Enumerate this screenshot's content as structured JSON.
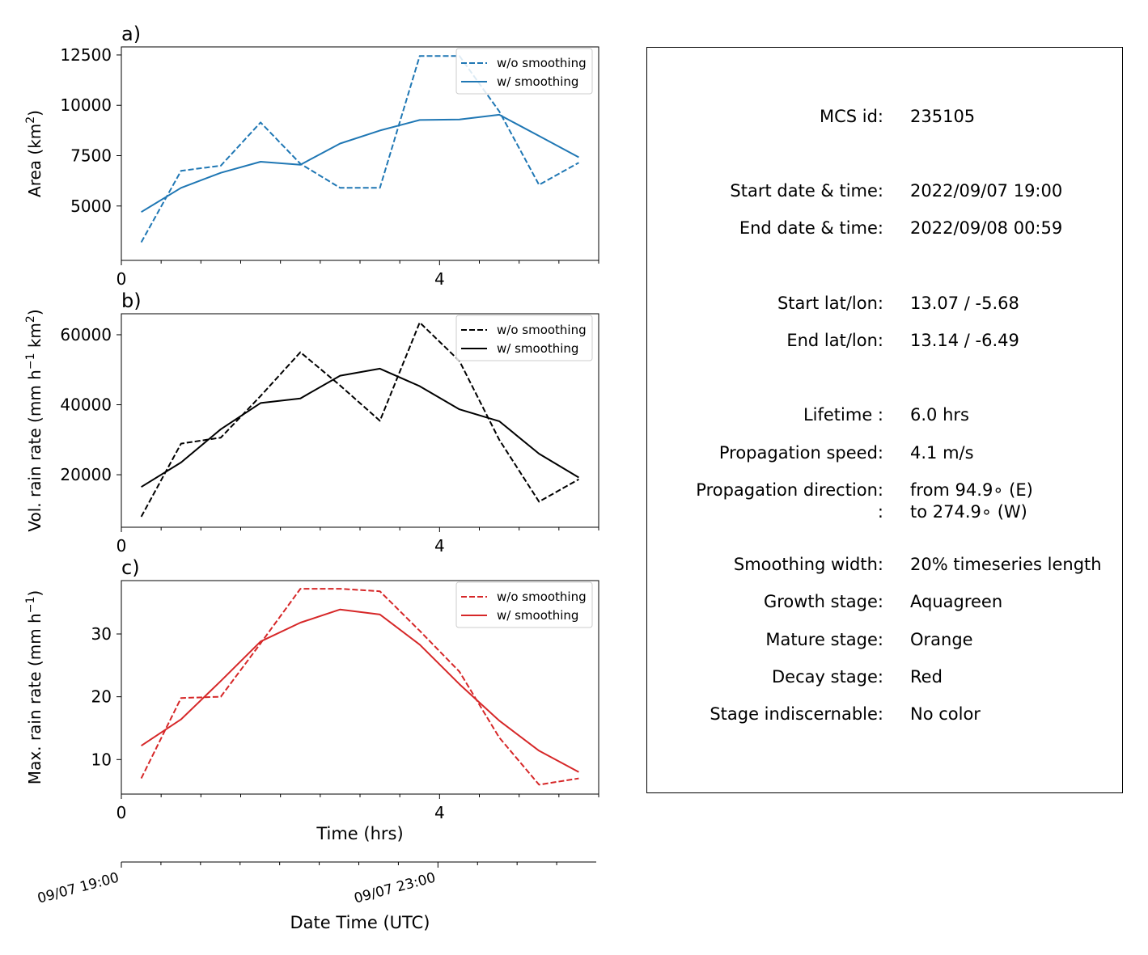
{
  "chart_data": [
    {
      "type": "line",
      "panel_label": "a)",
      "ylabel": "Area  (km",
      "ylabel_sup": "2",
      "ylabel_end": ")",
      "xlim": [
        0,
        6
      ],
      "ylim": [
        2300,
        12900
      ],
      "yticks": [
        5000,
        7500,
        10000,
        12500
      ],
      "xticks": [
        0,
        4
      ],
      "color": "#1f77b4",
      "x": [
        0.25,
        0.75,
        1.25,
        1.75,
        2.25,
        2.75,
        3.25,
        3.75,
        4.25,
        4.75,
        5.25,
        5.75
      ],
      "series": [
        {
          "name": "w/o smoothing",
          "style": "dashed",
          "values": [
            3200,
            6750,
            7000,
            9150,
            7100,
            5900,
            5900,
            12450,
            12450,
            9700,
            6050,
            7150
          ]
        },
        {
          "name": "w/ smoothing",
          "style": "solid",
          "values": [
            4700,
            5900,
            6650,
            7200,
            7050,
            8100,
            8750,
            9270,
            9300,
            9530,
            8480,
            7420
          ]
        }
      ]
    },
    {
      "type": "line",
      "panel_label": "b)",
      "ylabel": "Vol. rain rate (mm h",
      "ylabel_sup": "−1",
      "ylabel_mid": " km",
      "ylabel_sup2": "2",
      "ylabel_end": ")",
      "xlim": [
        0,
        6
      ],
      "ylim": [
        5000,
        66000
      ],
      "yticks": [
        20000,
        40000,
        60000
      ],
      "xticks": [
        0,
        4
      ],
      "color": "#000000",
      "x": [
        0.25,
        0.75,
        1.25,
        1.75,
        2.25,
        2.75,
        3.25,
        3.75,
        4.25,
        4.75,
        5.25,
        5.75
      ],
      "series": [
        {
          "name": "w/o smoothing",
          "style": "dashed",
          "values": [
            8000,
            28900,
            30600,
            42500,
            55000,
            45500,
            35400,
            63500,
            52500,
            30000,
            12300,
            18700
          ]
        },
        {
          "name": "w/ smoothing",
          "style": "solid",
          "values": [
            16500,
            23500,
            33000,
            40500,
            41800,
            48300,
            50300,
            45300,
            38700,
            35300,
            26000,
            19200
          ]
        }
      ]
    },
    {
      "type": "line",
      "panel_label": "c)",
      "ylabel": "Max. rain rate  (mm h",
      "ylabel_sup": "−1",
      "ylabel_end": ")",
      "xlabel": "Time (hrs)",
      "xlim": [
        0,
        6
      ],
      "ylim": [
        4.5,
        38.5
      ],
      "yticks": [
        10,
        20,
        30
      ],
      "xticks": [
        0,
        4
      ],
      "color": "#d62728",
      "x": [
        0.25,
        0.75,
        1.25,
        1.75,
        2.25,
        2.75,
        3.25,
        3.75,
        4.25,
        4.75,
        5.25,
        5.75
      ],
      "series": [
        {
          "name": "w/o smoothing",
          "style": "dashed",
          "values": [
            7,
            19.8,
            20,
            28.5,
            37.2,
            37.2,
            36.8,
            30.5,
            24,
            13.5,
            6,
            7
          ]
        },
        {
          "name": "w/ smoothing",
          "style": "solid",
          "values": [
            12.2,
            16.4,
            22.5,
            28.8,
            31.8,
            33.9,
            33.1,
            28.3,
            22.0,
            16.2,
            11.4,
            8.0
          ]
        }
      ]
    }
  ],
  "datetime_axis": {
    "xlabel": "Date Time (UTC)",
    "xlim": [
      0,
      6
    ],
    "tick_labels": [
      {
        "x": 0,
        "label": "09/07 19:00"
      },
      {
        "x": 4,
        "label": "09/07 23:00"
      }
    ]
  },
  "info": {
    "mcs_id": {
      "label": "MCS id:",
      "value": "235105"
    },
    "start_dt": {
      "label": "Start date & time:",
      "value": "2022/09/07 19:00"
    },
    "end_dt": {
      "label": "End date & time:",
      "value": "2022/09/08 00:59"
    },
    "start_ll": {
      "label": "Start lat/lon:",
      "value": "13.07 / -5.68"
    },
    "end_ll": {
      "label": "End lat/lon:",
      "value": "13.14 / -6.49"
    },
    "lifetime": {
      "label": "Lifetime :",
      "value": "6.0 hrs"
    },
    "prop_speed": {
      "label": "Propagation speed:",
      "value": "4.1 m/s"
    },
    "prop_dir": {
      "label": "Propagation direction:",
      "value": "from  94.9∘ (E)"
    },
    "prop_dir2": {
      "label": ":",
      "value": "to   274.9∘ (W)"
    },
    "smoothing": {
      "label": "Smoothing width:",
      "value": "20% timeseries length"
    },
    "growth": {
      "label": "Growth stage:",
      "value": "Aquagreen"
    },
    "mature": {
      "label": "Mature stage:",
      "value": "Orange"
    },
    "decay": {
      "label": "Decay stage:",
      "value": "Red"
    },
    "indisc": {
      "label": "Stage indiscernable:",
      "value": "No color"
    }
  }
}
